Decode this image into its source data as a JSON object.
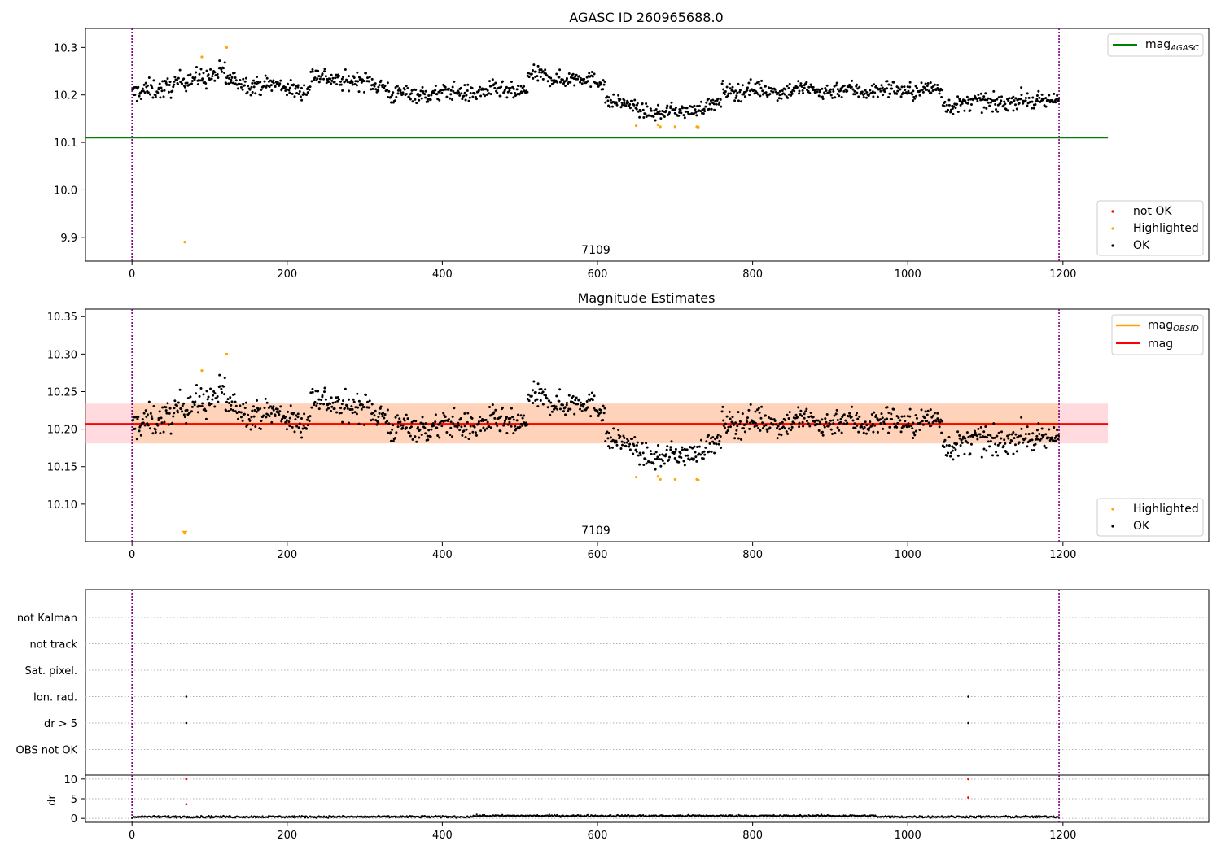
{
  "colors": {
    "ok": "#000000",
    "highlighted": "#ffa500",
    "not_ok": "#ff0000",
    "mag_agasc": "#008000",
    "mag_obsid": "#ffa500",
    "mag": "#ff0000",
    "band_obsid": "#ffcfb0",
    "band_mag": "#ffb0b8",
    "obs_boundary": "#800080"
  },
  "chart_data": [
    {
      "type": "scatter",
      "title": "AGASC ID 260965688.0",
      "xlim": [
        -60,
        1388
      ],
      "ylim": [
        9.85,
        10.34
      ],
      "x_ticks": [
        "0",
        "200",
        "400",
        "600",
        "800",
        "1000",
        "1200"
      ],
      "y_ticks": [
        "9.9",
        "10.0",
        "10.1",
        "10.2",
        "10.3"
      ],
      "obs_label": "7109",
      "legend_lines": [
        {
          "label": "mag",
          "sub": "AGASC"
        }
      ],
      "legend_points": [
        "not OK",
        "Highlighted",
        "OK"
      ],
      "mag_agasc": 10.11,
      "obs_boundaries": [
        0,
        1195
      ],
      "ok_series": {
        "name": "OK",
        "x_range": [
          0,
          1195
        ],
        "segments": [
          {
            "x0": 0,
            "x1": 120,
            "y0": 10.2,
            "y1": 10.25,
            "noise": 0.018
          },
          {
            "x0": 120,
            "x1": 230,
            "y0": 10.23,
            "y1": 10.21,
            "noise": 0.015
          },
          {
            "x0": 230,
            "x1": 330,
            "y0": 10.24,
            "y1": 10.22,
            "noise": 0.016
          },
          {
            "x0": 330,
            "x1": 510,
            "y0": 10.2,
            "y1": 10.21,
            "noise": 0.015
          },
          {
            "x0": 510,
            "x1": 610,
            "y0": 10.24,
            "y1": 10.23,
            "noise": 0.014
          },
          {
            "x0": 610,
            "x1": 680,
            "y0": 10.19,
            "y1": 10.16,
            "noise": 0.012
          },
          {
            "x0": 680,
            "x1": 760,
            "y0": 10.16,
            "y1": 10.18,
            "noise": 0.012
          },
          {
            "x0": 760,
            "x1": 1045,
            "y0": 10.21,
            "y1": 10.21,
            "noise": 0.015
          },
          {
            "x0": 1045,
            "x1": 1195,
            "y0": 10.18,
            "y1": 10.19,
            "noise": 0.015
          }
        ]
      },
      "highlighted_series": {
        "name": "Highlighted",
        "x": [
          68,
          90,
          122,
          650,
          678,
          681,
          700,
          728,
          730
        ],
        "y": [
          9.89,
          10.28,
          10.3,
          10.135,
          10.137,
          10.133,
          10.133,
          10.133,
          10.132
        ]
      }
    },
    {
      "type": "scatter",
      "title": "Magnitude Estimates",
      "xlim": [
        -60,
        1388
      ],
      "ylim": [
        10.05,
        10.36
      ],
      "x_ticks": [
        "0",
        "200",
        "400",
        "600",
        "800",
        "1000",
        "1200"
      ],
      "y_ticks": [
        "10.10",
        "10.15",
        "10.20",
        "10.25",
        "10.30",
        "10.35"
      ],
      "obs_label": "7109",
      "legend_lines": [
        {
          "label": "mag",
          "sub": "OBSID"
        },
        {
          "label": "mag",
          "sub": ""
        }
      ],
      "legend_points": [
        "Highlighted",
        "OK"
      ],
      "mag_obsid": 10.207,
      "mag": 10.207,
      "band": [
        10.181,
        10.234
      ],
      "obs_boundaries": [
        0,
        1195
      ],
      "highlighted_series": {
        "name": "Highlighted",
        "x": [
          68,
          90,
          122,
          650,
          678,
          681,
          700,
          728,
          730
        ],
        "y": [
          10.06,
          10.278,
          10.3,
          10.136,
          10.137,
          10.133,
          10.133,
          10.133,
          10.132
        ]
      }
    },
    {
      "type": "scatter",
      "xlim": [
        -60,
        1388
      ],
      "x_ticks": [
        "0",
        "200",
        "400",
        "600",
        "800",
        "1000",
        "1200"
      ],
      "flag_rows": [
        "not Kalman",
        "not track",
        "Sat. pixel.",
        "Ion. rad.",
        "dr > 5",
        "OBS not OK"
      ],
      "flag_points": [
        {
          "row": "Ion. rad.",
          "x": 70
        },
        {
          "row": "Ion. rad.",
          "x": 1078
        },
        {
          "row": "dr > 5",
          "x": 70
        },
        {
          "row": "dr > 5",
          "x": 1078
        }
      ],
      "dr": {
        "ylabel": "dr",
        "ylim": [
          -1,
          11
        ],
        "y_ticks": [
          "0",
          "5",
          "10"
        ],
        "series_level": 0.4,
        "outliers": [
          {
            "x": 70,
            "y": 10
          },
          {
            "x": 70,
            "y": 3.6
          },
          {
            "x": 1078,
            "y": 10
          },
          {
            "x": 1078,
            "y": 5.3
          }
        ]
      },
      "obs_boundaries": [
        0,
        1195
      ]
    }
  ]
}
